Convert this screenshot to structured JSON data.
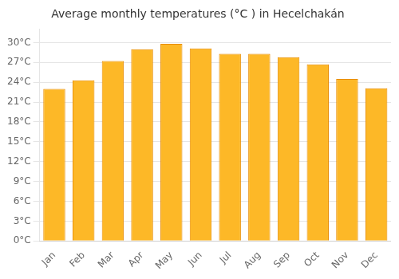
{
  "chart_data": {
    "type": "bar",
    "title": "Average monthly temperatures (°C ) in Hecelchakán",
    "categories": [
      "Jan",
      "Feb",
      "Mar",
      "Apr",
      "May",
      "Jun",
      "Jul",
      "Aug",
      "Sep",
      "Oct",
      "Nov",
      "Dec"
    ],
    "values": [
      23.0,
      24.3,
      27.2,
      29.0,
      29.8,
      29.1,
      28.3,
      28.3,
      27.8,
      26.7,
      24.5,
      23.1
    ],
    "color": "#FDB827",
    "ylim": [
      0,
      32
    ],
    "yticks": [
      {
        "value": 0,
        "label": "0°C"
      },
      {
        "value": 3,
        "label": "3°C"
      },
      {
        "value": 6,
        "label": "6°C"
      },
      {
        "value": 9,
        "label": "9°C"
      },
      {
        "value": 12,
        "label": "12°C"
      },
      {
        "value": 15,
        "label": "15°C"
      },
      {
        "value": 18,
        "label": "18°C"
      },
      {
        "value": 21,
        "label": "21°C"
      },
      {
        "value": 24,
        "label": "24°C"
      },
      {
        "value": 27,
        "label": "27°C"
      },
      {
        "value": 30,
        "label": "30°C"
      }
    ],
    "grid": true
  }
}
